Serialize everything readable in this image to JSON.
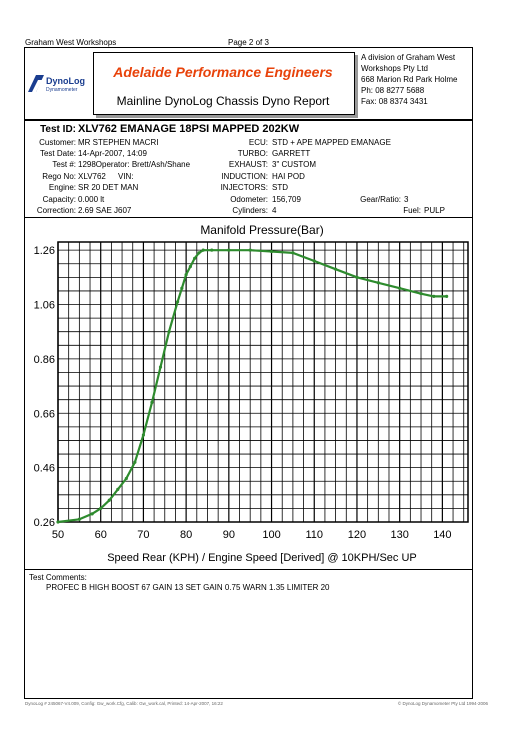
{
  "header": {
    "company": "Graham West Workshops",
    "page": "Page 2 of 3"
  },
  "banner": {
    "title": "Adelaide Performance Engineers",
    "subtitle": "Mainline DynoLog Chassis Dyno Report",
    "logo_main": "DynoLog",
    "logo_sub": "Dynamometer",
    "title_color": "#e8420a"
  },
  "address": {
    "line1": "A division of Graham West",
    "line2": "Workshops Pty Ltd",
    "line3": "668 Marion Rd Park Holme",
    "line4": "Ph: 08 8277 5688",
    "line5": "Fax: 08 8374 3431"
  },
  "test": {
    "id_label": "Test ID:",
    "id_value": "XLV762 EMANAGE 18PSI MAPPED 202KW",
    "customer_label": "Customer:",
    "customer_value": "MR STEPHEN MACRI",
    "date_label": "Test Date:",
    "date_value": "14-Apr-2007, 14:09",
    "num_label": "Test #:",
    "num_value": "1298Operator: Brett/Ash/Shane",
    "rego_label": "Rego No:",
    "rego_value": "XLV762",
    "vin_label": "VIN:",
    "vin_value": "",
    "engine_label": "Engine:",
    "engine_value": "SR 20 DET MAN",
    "capacity_label": "Capacity:",
    "capacity_value": "0.000 lt",
    "correction_label": "Correction:",
    "correction_value": "2.69 SAE J607",
    "ecu_label": "ECU:",
    "ecu_value": "STD + APE MAPPED EMANAGE",
    "turbo_label": "TURBO:",
    "turbo_value": "GARRETT",
    "exhaust_label": "EXHAUST:",
    "exhaust_value": "3\" CUSTOM",
    "induction_label": "INDUCTION:",
    "induction_value": "HAI POD",
    "injectors_label": "INJECTORS:",
    "injectors_value": "STD",
    "odometer_label": "Odometer:",
    "odometer_value": "156,709",
    "cylinders_label": "Cylinders:",
    "cylinders_value": "4",
    "gear_label": "Gear/Ratio:",
    "gear_value": "3",
    "fuel_label": "Fuel:",
    "fuel_value": "PULP"
  },
  "chart_data": {
    "type": "line",
    "title": "Manifold Pressure(Bar)",
    "xlabel": "Speed Rear (KPH) / Engine Speed [Derived] @ 10KPH/Sec UP",
    "ylabel": "",
    "xlim": [
      50,
      146
    ],
    "ylim": [
      0.26,
      1.29
    ],
    "x_ticks": [
      50,
      60,
      70,
      80,
      90,
      100,
      110,
      120,
      130,
      140
    ],
    "y_ticks": [
      0.26,
      0.46,
      0.66,
      0.86,
      1.06,
      1.26
    ],
    "y_tick_labels": [
      "0.26",
      "0.46",
      "0.66",
      "0.86",
      "1.06",
      "1.26"
    ],
    "grid": true,
    "line_color": "#2e8b2e",
    "series": [
      {
        "name": "",
        "x": [
          50,
          55,
          58,
          60,
          62,
          64,
          66,
          68,
          70,
          72,
          74,
          76,
          78,
          79,
          80,
          81,
          82,
          83,
          84,
          86,
          90,
          95,
          100,
          105,
          110,
          115,
          120,
          125,
          130,
          135,
          138,
          141
        ],
        "y": [
          0.26,
          0.27,
          0.29,
          0.31,
          0.34,
          0.38,
          0.42,
          0.48,
          0.58,
          0.7,
          0.83,
          0.96,
          1.07,
          1.12,
          1.17,
          1.2,
          1.23,
          1.25,
          1.26,
          1.26,
          1.26,
          1.26,
          1.255,
          1.25,
          1.22,
          1.19,
          1.16,
          1.14,
          1.12,
          1.1,
          1.09,
          1.09
        ]
      }
    ]
  },
  "comments": {
    "label": "Test Comments:",
    "text": "PROFEC B HIGH BOOST 67 GAIN 13 SET GAIN 0.75 WARN 1.35 LIMITER 20"
  },
  "footer": {
    "left": "DynoLog # 245067-V4.009, Config: Gw_work.Cfg, Calib: Gw_work.cal, Printed: 14-Apr-2007, 16:22",
    "right": "© DynoLog Dynamometer Pty Ltd 1994-2006"
  }
}
